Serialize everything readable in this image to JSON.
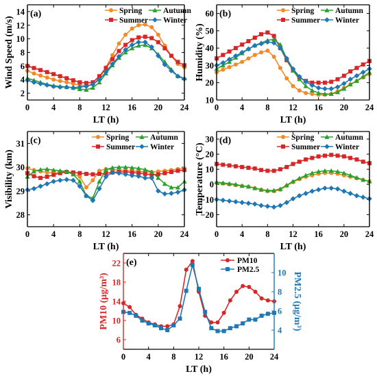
{
  "colors": {
    "spring": "#f28a26",
    "summer": "#d62728",
    "autumn": "#2ca02c",
    "winter": "#1f77b4",
    "pm10": "#d62728",
    "pm25": "#1f77b4",
    "axis": "#000000"
  },
  "chart_data": [
    {
      "type": "line",
      "panel_label": "(a)",
      "xlabel": "LT (h)",
      "ylabel": "Wind Speed (m/s)",
      "xlim": [
        0,
        24
      ],
      "ylim": [
        1,
        15
      ],
      "xticks": [
        0,
        4,
        8,
        12,
        16,
        20,
        24
      ],
      "yticks": [
        2,
        4,
        6,
        8,
        10,
        12,
        14
      ],
      "legend": "top-left",
      "x": [
        0,
        1,
        2,
        3,
        4,
        5,
        6,
        7,
        8,
        9,
        10,
        11,
        12,
        13,
        14,
        15,
        16,
        17,
        18,
        19,
        20,
        21,
        22,
        23,
        24
      ],
      "series": [
        {
          "name": "Spring",
          "key": "spring",
          "marker": "circle",
          "values": [
            5.3,
            4.9,
            4.6,
            4.3,
            4.0,
            3.8,
            3.6,
            3.4,
            3.2,
            3.1,
            3.3,
            4.2,
            5.8,
            7.6,
            9.3,
            10.6,
            11.5,
            12.0,
            12.1,
            11.7,
            10.6,
            9.0,
            7.5,
            6.3,
            5.8
          ]
        },
        {
          "name": "Summer",
          "key": "summer",
          "marker": "square",
          "values": [
            6.0,
            5.7,
            5.4,
            5.1,
            4.8,
            4.5,
            4.2,
            3.9,
            3.6,
            3.5,
            3.6,
            4.5,
            5.7,
            7.0,
            8.2,
            9.1,
            9.8,
            10.2,
            10.3,
            10.1,
            9.5,
            8.6,
            7.5,
            6.6,
            6.1
          ]
        },
        {
          "name": "Autumn",
          "key": "autumn",
          "marker": "triangle",
          "values": [
            4.2,
            3.9,
            3.6,
            3.3,
            3.1,
            3.0,
            2.9,
            2.8,
            2.6,
            2.5,
            2.8,
            3.6,
            4.9,
            6.1,
            7.2,
            8.0,
            8.6,
            9.0,
            9.1,
            8.6,
            7.7,
            6.6,
            5.5,
            4.5,
            4.2
          ]
        },
        {
          "name": "Winter",
          "key": "winter",
          "marker": "diamond",
          "values": [
            3.9,
            3.6,
            3.4,
            3.2,
            3.0,
            2.9,
            2.9,
            2.8,
            2.9,
            3.0,
            3.3,
            4.0,
            5.1,
            6.3,
            7.4,
            8.4,
            9.1,
            9.5,
            9.5,
            8.8,
            7.5,
            6.2,
            5.3,
            4.5,
            4.1
          ]
        }
      ]
    },
    {
      "type": "line",
      "panel_label": "(b)",
      "xlabel": "LT (h)",
      "ylabel": "Humidity (%)",
      "xlim": [
        0,
        24
      ],
      "ylim": [
        10,
        65
      ],
      "xticks": [
        0,
        4,
        8,
        12,
        16,
        20,
        24
      ],
      "yticks": [
        10,
        20,
        30,
        40,
        50,
        60
      ],
      "legend": "top-right",
      "x": [
        0,
        1,
        2,
        3,
        4,
        5,
        6,
        7,
        8,
        9,
        10,
        11,
        12,
        13,
        14,
        15,
        16,
        17,
        18,
        19,
        20,
        21,
        22,
        23,
        24
      ],
      "series": [
        {
          "name": "Spring",
          "key": "spring",
          "marker": "circle",
          "values": [
            26.0,
            27.5,
            29.0,
            30.5,
            32.0,
            34.0,
            36.0,
            37.5,
            38.5,
            35.0,
            28.5,
            22.5,
            18.0,
            15.5,
            14.0,
            13.5,
            13.0,
            13.0,
            13.5,
            15.0,
            17.0,
            19.0,
            21.0,
            23.0,
            25.0
          ]
        },
        {
          "name": "Summer",
          "key": "summer",
          "marker": "square",
          "values": [
            34.0,
            36.0,
            38.0,
            40.0,
            42.0,
            44.0,
            46.0,
            48.0,
            49.0,
            47.0,
            40.0,
            33.0,
            27.0,
            23.0,
            21.0,
            20.0,
            20.0,
            20.0,
            20.5,
            22.0,
            24.0,
            26.5,
            28.5,
            30.5,
            32.5
          ]
        },
        {
          "name": "Autumn",
          "key": "autumn",
          "marker": "triangle",
          "values": [
            28.0,
            30.0,
            32.0,
            34.5,
            37.0,
            39.5,
            41.5,
            43.0,
            44.5,
            45.0,
            42.0,
            34.0,
            27.0,
            22.0,
            18.0,
            15.5,
            14.0,
            13.5,
            13.5,
            14.5,
            16.5,
            19.0,
            21.0,
            23.5,
            26.0
          ]
        },
        {
          "name": "Winter",
          "key": "winter",
          "marker": "diamond",
          "values": [
            30.0,
            31.5,
            33.5,
            35.5,
            37.5,
            39.5,
            41.5,
            42.5,
            43.5,
            43.0,
            40.0,
            34.0,
            28.0,
            23.5,
            20.5,
            18.5,
            17.0,
            16.5,
            16.5,
            17.5,
            19.5,
            22.0,
            24.0,
            26.0,
            28.0
          ]
        }
      ]
    },
    {
      "type": "line",
      "panel_label": "(c)",
      "xlabel": "LT (h)",
      "ylabel": "Visibility (km)",
      "xlim": [
        0,
        24
      ],
      "ylim": [
        27.5,
        31.5
      ],
      "xticks": [
        0,
        4,
        8,
        12,
        16,
        20,
        24
      ],
      "yticks": [
        28,
        29,
        30,
        31
      ],
      "legend": "top-right",
      "x": [
        0,
        1,
        2,
        3,
        4,
        5,
        6,
        7,
        8,
        9,
        10,
        11,
        12,
        13,
        14,
        15,
        16,
        17,
        18,
        19,
        20,
        21,
        22,
        23,
        24
      ],
      "series": [
        {
          "name": "Spring",
          "key": "spring",
          "marker": "circle",
          "values": [
            29.95,
            29.88,
            29.82,
            29.78,
            29.76,
            29.78,
            29.8,
            29.72,
            29.6,
            29.15,
            29.45,
            29.85,
            29.92,
            29.9,
            29.88,
            29.86,
            29.84,
            29.82,
            29.8,
            29.8,
            29.82,
            29.85,
            29.88,
            29.92,
            29.95
          ]
        },
        {
          "name": "Summer",
          "key": "summer",
          "marker": "square",
          "values": [
            29.75,
            29.62,
            29.55,
            29.6,
            29.68,
            29.75,
            29.8,
            29.78,
            29.75,
            29.72,
            29.7,
            29.72,
            29.75,
            29.78,
            29.8,
            29.8,
            29.78,
            29.75,
            29.72,
            29.68,
            29.7,
            29.75,
            29.8,
            29.85,
            29.88
          ]
        },
        {
          "name": "Autumn",
          "key": "autumn",
          "marker": "triangle",
          "values": [
            29.6,
            29.82,
            29.9,
            29.92,
            29.88,
            29.85,
            29.82,
            29.7,
            29.4,
            28.8,
            28.7,
            29.4,
            29.9,
            29.98,
            30.0,
            30.0,
            29.98,
            29.95,
            29.9,
            29.8,
            29.55,
            29.3,
            29.15,
            29.15,
            29.4
          ]
        },
        {
          "name": "Winter",
          "key": "winter",
          "marker": "diamond",
          "values": [
            29.05,
            29.1,
            29.2,
            29.3,
            29.4,
            29.45,
            29.48,
            29.45,
            29.2,
            28.8,
            28.6,
            29.1,
            29.6,
            29.78,
            29.75,
            29.7,
            29.65,
            29.62,
            29.55,
            29.55,
            29.0,
            28.88,
            28.9,
            28.95,
            29.05
          ]
        }
      ]
    },
    {
      "type": "line",
      "panel_label": "(d)",
      "xlabel": "LT (h)",
      "ylabel": "Temperature (°C)",
      "xlim": [
        0,
        24
      ],
      "ylim": [
        -28,
        35
      ],
      "xticks": [
        0,
        4,
        8,
        12,
        16,
        20,
        24
      ],
      "yticks": [
        -20,
        -10,
        0,
        10,
        20,
        30
      ],
      "legend": "top-right",
      "x": [
        0,
        1,
        2,
        3,
        4,
        5,
        6,
        7,
        8,
        9,
        10,
        11,
        12,
        13,
        14,
        15,
        16,
        17,
        18,
        19,
        20,
        21,
        22,
        23,
        24
      ],
      "series": [
        {
          "name": "Spring",
          "key": "spring",
          "marker": "circle",
          "values": [
            1.0,
            0.5,
            0.0,
            -0.5,
            -1.0,
            -1.5,
            -2.5,
            -3.5,
            -4.5,
            -4.5,
            -3.5,
            -1.0,
            1.5,
            3.5,
            5.0,
            6.0,
            7.0,
            7.5,
            7.5,
            7.0,
            6.0,
            5.0,
            4.0,
            3.0,
            2.0
          ]
        },
        {
          "name": "Summer",
          "key": "summer",
          "marker": "square",
          "values": [
            13.5,
            13.0,
            12.5,
            12.0,
            11.5,
            11.0,
            10.5,
            9.5,
            9.0,
            9.0,
            10.0,
            11.5,
            13.5,
            15.0,
            16.5,
            17.5,
            18.5,
            19.0,
            19.5,
            19.0,
            18.5,
            17.5,
            16.5,
            15.0,
            14.0
          ]
        },
        {
          "name": "Autumn",
          "key": "autumn",
          "marker": "triangle",
          "values": [
            1.5,
            1.0,
            0.5,
            0.0,
            -1.0,
            -1.5,
            -2.5,
            -3.5,
            -4.0,
            -4.0,
            -3.0,
            -0.5,
            2.0,
            4.0,
            6.0,
            7.5,
            8.5,
            9.0,
            9.0,
            8.5,
            7.5,
            6.0,
            4.5,
            3.0,
            2.0
          ]
        },
        {
          "name": "Winter",
          "key": "winter",
          "marker": "diamond",
          "values": [
            -10.0,
            -10.5,
            -11.0,
            -11.5,
            -12.0,
            -12.5,
            -13.0,
            -14.0,
            -14.5,
            -15.0,
            -14.0,
            -12.0,
            -9.5,
            -7.5,
            -6.0,
            -4.5,
            -3.5,
            -2.5,
            -2.5,
            -3.0,
            -4.5,
            -6.0,
            -7.5,
            -8.5,
            -9.5
          ]
        }
      ]
    },
    {
      "type": "line",
      "panel_label": "(e)",
      "xlabel": "LT (h)",
      "ylabel": "PM10 (μg/m³)",
      "y2label": "PM2.5 (μg/m³)",
      "xlim": [
        0,
        24
      ],
      "ylim": [
        4,
        24
      ],
      "y2lim": [
        2,
        12
      ],
      "xticks": [
        0,
        4,
        8,
        12,
        16,
        20,
        24
      ],
      "yticks": [
        6,
        10,
        14,
        18,
        22
      ],
      "y2ticks": [
        4,
        6,
        8,
        10
      ],
      "legend": "top-right",
      "x": [
        0,
        1,
        2,
        3,
        4,
        5,
        6,
        7,
        8,
        9,
        10,
        11,
        12,
        13,
        14,
        15,
        16,
        17,
        18,
        19,
        20,
        21,
        22,
        23,
        24
      ],
      "series": [
        {
          "name": "PM10",
          "key": "pm10",
          "marker": "circle",
          "axis": "left",
          "values": [
            13.6,
            12.8,
            11.2,
            10.4,
            9.6,
            9.2,
            8.8,
            8.8,
            9.2,
            13.0,
            20.6,
            22.4,
            16.0,
            11.0,
            9.6,
            9.6,
            11.6,
            14.2,
            16.0,
            17.2,
            17.0,
            16.0,
            14.6,
            14.2,
            14.0
          ]
        },
        {
          "name": "PM2.5",
          "key": "pm25",
          "marker": "square",
          "axis": "right",
          "values": [
            5.9,
            5.8,
            5.5,
            5.0,
            4.7,
            4.5,
            4.2,
            4.0,
            4.5,
            5.2,
            8.1,
            10.8,
            8.3,
            5.9,
            4.2,
            3.9,
            3.9,
            4.2,
            4.4,
            4.7,
            5.1,
            5.1,
            5.5,
            5.7,
            5.8
          ]
        }
      ]
    }
  ]
}
